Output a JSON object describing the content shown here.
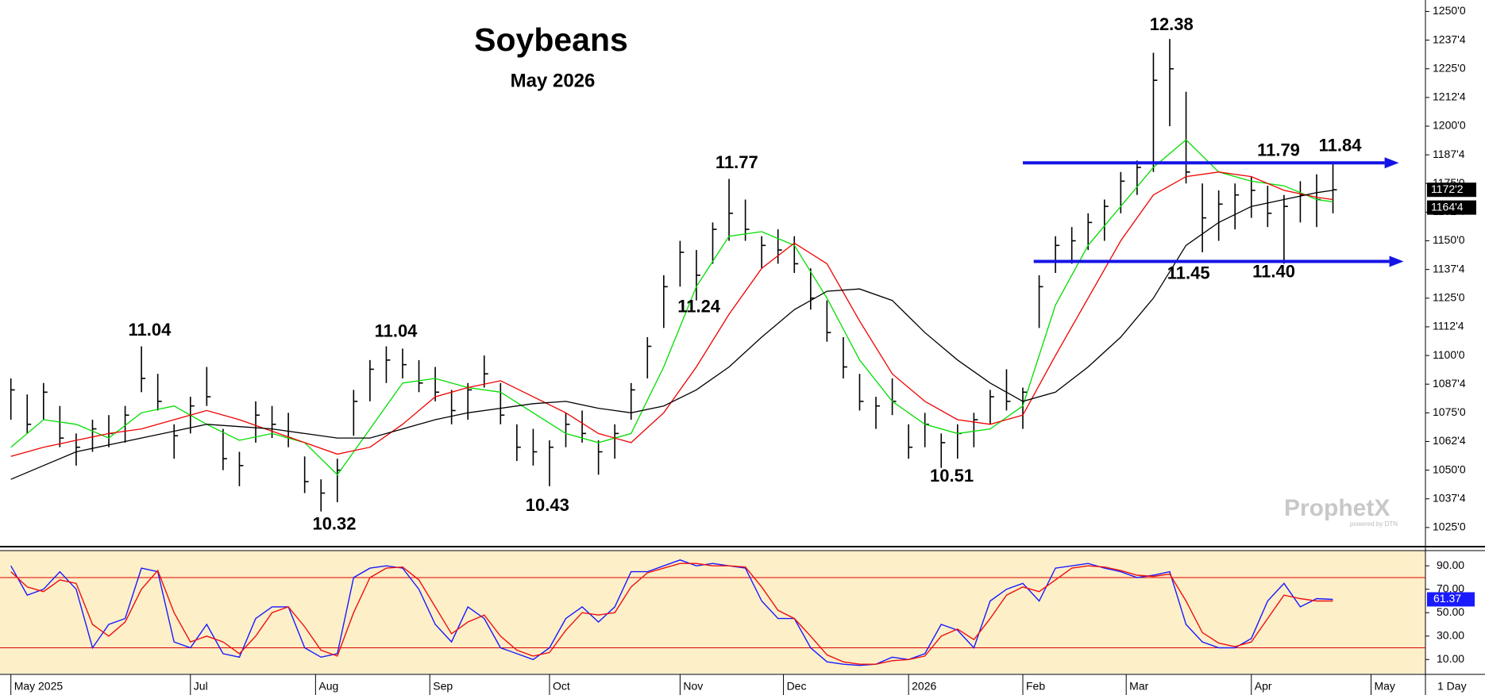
{
  "chart_data": [
    {
      "type": "ohlc",
      "title": "Soybeans",
      "subtitle": "May 2026",
      "x": [
        0,
        3,
        6,
        9,
        12,
        15,
        18,
        21,
        24,
        27,
        30,
        33,
        36,
        39,
        42,
        45,
        48,
        51,
        54,
        57,
        60,
        63,
        66,
        69,
        72,
        75,
        78,
        81,
        84,
        87,
        90,
        93,
        96,
        99,
        102,
        105,
        108,
        111,
        114,
        117,
        120,
        123,
        126,
        129,
        132,
        135,
        138,
        141,
        144,
        147,
        150,
        153,
        156,
        159,
        162,
        165,
        168,
        171,
        174,
        177,
        180,
        183,
        186,
        189,
        192,
        195,
        198,
        201,
        204,
        207,
        210,
        213,
        216,
        219,
        222,
        225,
        228,
        231,
        234,
        237,
        240,
        243
      ],
      "high": [
        1090,
        1083,
        1088,
        1078,
        1066,
        1072,
        1074,
        1078,
        1104,
        1092,
        1070,
        1082,
        1095,
        1068,
        1058,
        1080,
        1078,
        1075,
        1056,
        1046,
        1055,
        1085,
        1098,
        1104,
        1103,
        1098,
        1095,
        1085,
        1088,
        1100,
        1088,
        1070,
        1068,
        1063,
        1075,
        1076,
        1063,
        1070,
        1088,
        1108,
        1135,
        1150,
        1146,
        1158,
        1177,
        1168,
        1152,
        1155,
        1152,
        1138,
        1124,
        1108,
        1092,
        1082,
        1090,
        1070,
        1075,
        1066,
        1070,
        1075,
        1085,
        1094,
        1086,
        1135,
        1152,
        1156,
        1162,
        1168,
        1180,
        1185,
        1232,
        1238,
        1215,
        1175,
        1172,
        1175,
        1178,
        1174,
        1170,
        1176,
        1179,
        1184
      ],
      "low": [
        1072,
        1066,
        1072,
        1060,
        1052,
        1058,
        1060,
        1062,
        1084,
        1076,
        1055,
        1066,
        1078,
        1050,
        1043,
        1062,
        1064,
        1060,
        1040,
        1032,
        1036,
        1065,
        1080,
        1088,
        1090,
        1084,
        1080,
        1070,
        1072,
        1086,
        1070,
        1054,
        1052,
        1043,
        1060,
        1062,
        1048,
        1055,
        1072,
        1090,
        1112,
        1130,
        1124,
        1140,
        1150,
        1150,
        1138,
        1140,
        1136,
        1120,
        1106,
        1090,
        1076,
        1068,
        1074,
        1055,
        1060,
        1051,
        1055,
        1060,
        1070,
        1076,
        1068,
        1112,
        1136,
        1140,
        1146,
        1150,
        1162,
        1170,
        1180,
        1200,
        1175,
        1145,
        1150,
        1155,
        1160,
        1156,
        1140,
        1158,
        1156,
        1162
      ],
      "close": [
        1085,
        1070,
        1084,
        1064,
        1060,
        1068,
        1066,
        1074,
        1090,
        1080,
        1065,
        1078,
        1082,
        1055,
        1052,
        1074,
        1070,
        1064,
        1045,
        1040,
        1050,
        1080,
        1094,
        1098,
        1096,
        1088,
        1084,
        1076,
        1085,
        1092,
        1074,
        1060,
        1058,
        1060,
        1070,
        1066,
        1058,
        1066,
        1085,
        1104,
        1130,
        1145,
        1135,
        1155,
        1162,
        1155,
        1148,
        1146,
        1140,
        1125,
        1110,
        1095,
        1080,
        1078,
        1080,
        1060,
        1070,
        1062,
        1066,
        1072,
        1082,
        1080,
        1084,
        1130,
        1148,
        1150,
        1158,
        1165,
        1176,
        1182,
        1220,
        1225,
        1180,
        1160,
        1166,
        1170,
        1172,
        1162,
        1165,
        1170,
        1168,
        1172.25
      ],
      "color": "#000000",
      "moving_averages": {
        "x": [
          0,
          6,
          12,
          18,
          24,
          30,
          36,
          42,
          48,
          54,
          60,
          66,
          72,
          78,
          84,
          90,
          96,
          102,
          108,
          114,
          120,
          126,
          132,
          138,
          144,
          150,
          156,
          162,
          168,
          174,
          180,
          186,
          192,
          198,
          204,
          210,
          216,
          222,
          228,
          234,
          240,
          243
        ],
        "series": [
          {
            "color": "#00dd00",
            "values": [
              1060,
              1072,
              1070,
              1064,
              1075,
              1078,
              1070,
              1063,
              1066,
              1062,
              1048,
              1068,
              1088,
              1090,
              1086,
              1084,
              1075,
              1066,
              1062,
              1066,
              1095,
              1130,
              1152,
              1154,
              1148,
              1125,
              1098,
              1080,
              1070,
              1066,
              1068,
              1078,
              1122,
              1148,
              1165,
              1182,
              1194,
              1180,
              1176,
              1174,
              1168,
              1167
            ]
          },
          {
            "color": "#ee0000",
            "values": [
              1056,
              1060,
              1063,
              1066,
              1068,
              1072,
              1076,
              1072,
              1067,
              1062,
              1057,
              1060,
              1070,
              1082,
              1086,
              1089,
              1082,
              1075,
              1066,
              1062,
              1075,
              1095,
              1118,
              1138,
              1149,
              1140,
              1115,
              1092,
              1080,
              1072,
              1070,
              1074,
              1100,
              1125,
              1150,
              1170,
              1178,
              1180,
              1178,
              1172,
              1169,
              1168
            ]
          },
          {
            "color": "#000000",
            "values": [
              1046,
              1052,
              1058,
              1061,
              1064,
              1067,
              1070,
              1069,
              1068,
              1066,
              1064,
              1064,
              1068,
              1072,
              1075,
              1077,
              1079,
              1080,
              1077,
              1075,
              1078,
              1085,
              1095,
              1108,
              1120,
              1128,
              1129,
              1124,
              1110,
              1098,
              1088,
              1080,
              1084,
              1095,
              1108,
              1125,
              1148,
              1158,
              1165,
              1168,
              1171,
              1172
            ]
          }
        ]
      },
      "annotations": [
        "11.04",
        "10.32",
        "11.04",
        "10.43",
        "11.24",
        "11.77",
        "10.51",
        "12.38",
        "11.45",
        "11.40",
        "11.79",
        "11.84"
      ],
      "hlines": [
        {
          "value": 1184,
          "color": "#1414e6"
        },
        {
          "value": 1141,
          "color": "#1414e6"
        }
      ],
      "last_prices": [
        {
          "value": 1172.25,
          "label": "1172'2"
        },
        {
          "value": 1164.5,
          "label": "1164'4"
        }
      ],
      "xlim": [
        -2,
        260
      ],
      "ylim": [
        1017,
        1255
      ],
      "yticks": [
        {
          "value": 1025,
          "label": "1025'0"
        },
        {
          "value": 1037.5,
          "label": "1037'4"
        },
        {
          "value": 1050,
          "label": "1050'0"
        },
        {
          "value": 1062.5,
          "label": "1062'4"
        },
        {
          "value": 1075,
          "label": "1075'0"
        },
        {
          "value": 1087.5,
          "label": "1087'4"
        },
        {
          "value": 1100,
          "label": "1100'0"
        },
        {
          "value": 1112.5,
          "label": "1112'4"
        },
        {
          "value": 1125,
          "label": "1125'0"
        },
        {
          "value": 1137.5,
          "label": "1137'4"
        },
        {
          "value": 1150,
          "label": "1150'0"
        },
        {
          "value": 1162.5,
          "label": "1162'4"
        },
        {
          "value": 1175,
          "label": "1175'0"
        },
        {
          "value": 1187.5,
          "label": "1187'4"
        },
        {
          "value": 1200,
          "label": "1200'0"
        },
        {
          "value": 1212.5,
          "label": "1212'4"
        },
        {
          "value": 1225,
          "label": "1225'0"
        },
        {
          "value": 1237.5,
          "label": "1237'4"
        },
        {
          "value": 1250,
          "label": "1250'0"
        }
      ],
      "watermark": "ProphetX",
      "watermark_sub": "powered by DTN"
    },
    {
      "type": "line",
      "x": [
        0,
        3,
        6,
        9,
        12,
        15,
        18,
        21,
        24,
        27,
        30,
        33,
        36,
        39,
        42,
        45,
        48,
        51,
        54,
        57,
        60,
        63,
        66,
        69,
        72,
        75,
        78,
        81,
        84,
        87,
        90,
        93,
        96,
        99,
        102,
        105,
        108,
        111,
        114,
        117,
        120,
        123,
        126,
        129,
        132,
        135,
        138,
        141,
        144,
        147,
        150,
        153,
        156,
        159,
        162,
        165,
        168,
        171,
        174,
        177,
        180,
        183,
        186,
        189,
        192,
        195,
        198,
        201,
        204,
        207,
        210,
        213,
        216,
        219,
        222,
        225,
        228,
        231,
        234,
        237,
        240,
        243
      ],
      "series": [
        {
          "color": "#1a1aff",
          "values": [
            90,
            65,
            70,
            85,
            70,
            20,
            40,
            45,
            88,
            85,
            25,
            20,
            40,
            15,
            12,
            45,
            55,
            55,
            20,
            12,
            15,
            80,
            88,
            90,
            88,
            70,
            40,
            25,
            55,
            45,
            20,
            15,
            10,
            20,
            45,
            55,
            42,
            55,
            85,
            85,
            90,
            95,
            90,
            92,
            90,
            88,
            60,
            45,
            45,
            20,
            8,
            6,
            5,
            6,
            12,
            10,
            15,
            40,
            35,
            20,
            60,
            70,
            75,
            60,
            88,
            90,
            92,
            88,
            85,
            80,
            82,
            85,
            40,
            25,
            20,
            20,
            28,
            60,
            75,
            55,
            62,
            61.37
          ]
        },
        {
          "color": "#ee1111",
          "values": [
            85,
            72,
            68,
            78,
            75,
            40,
            30,
            42,
            70,
            86,
            50,
            25,
            30,
            25,
            15,
            30,
            50,
            55,
            38,
            18,
            13,
            50,
            80,
            88,
            89,
            78,
            55,
            32,
            42,
            48,
            30,
            18,
            13,
            16,
            35,
            50,
            48,
            50,
            72,
            84,
            88,
            92,
            92,
            90,
            90,
            89,
            72,
            52,
            45,
            30,
            14,
            8,
            6,
            6,
            9,
            10,
            13,
            30,
            36,
            27,
            45,
            65,
            72,
            68,
            78,
            88,
            90,
            89,
            86,
            82,
            81,
            83,
            60,
            33,
            24,
            21,
            25,
            45,
            65,
            62,
            60,
            60
          ]
        }
      ],
      "levels": [
        {
          "value": 80,
          "color": "#e00000"
        },
        {
          "value": 20,
          "color": "#e00000"
        }
      ],
      "last": {
        "value": 61.37,
        "label": "61.37"
      },
      "background": "#fdefc8",
      "xlim": [
        -2,
        260
      ],
      "ylim": [
        -2,
        103
      ],
      "yticks": [
        {
          "value": 10,
          "label": "10.00"
        },
        {
          "value": 30,
          "label": "30.00"
        },
        {
          "value": 50,
          "label": "50.00"
        },
        {
          "value": 70,
          "label": "70.00"
        },
        {
          "value": 90,
          "label": "90.00"
        }
      ],
      "xticks": [
        {
          "value": 0,
          "label": "May 2025"
        },
        {
          "value": 33,
          "label": "Jul"
        },
        {
          "value": 56,
          "label": "Aug"
        },
        {
          "value": 77,
          "label": "Sep"
        },
        {
          "value": 99,
          "label": "Oct"
        },
        {
          "value": 123,
          "label": "Nov"
        },
        {
          "value": 142,
          "label": "Dec"
        },
        {
          "value": 165,
          "label": "2026"
        },
        {
          "value": 186,
          "label": "Feb"
        },
        {
          "value": 205,
          "label": "Mar"
        },
        {
          "value": 228,
          "label": "Apr"
        },
        {
          "value": 250,
          "label": "May"
        }
      ],
      "period": "1 Day"
    }
  ]
}
